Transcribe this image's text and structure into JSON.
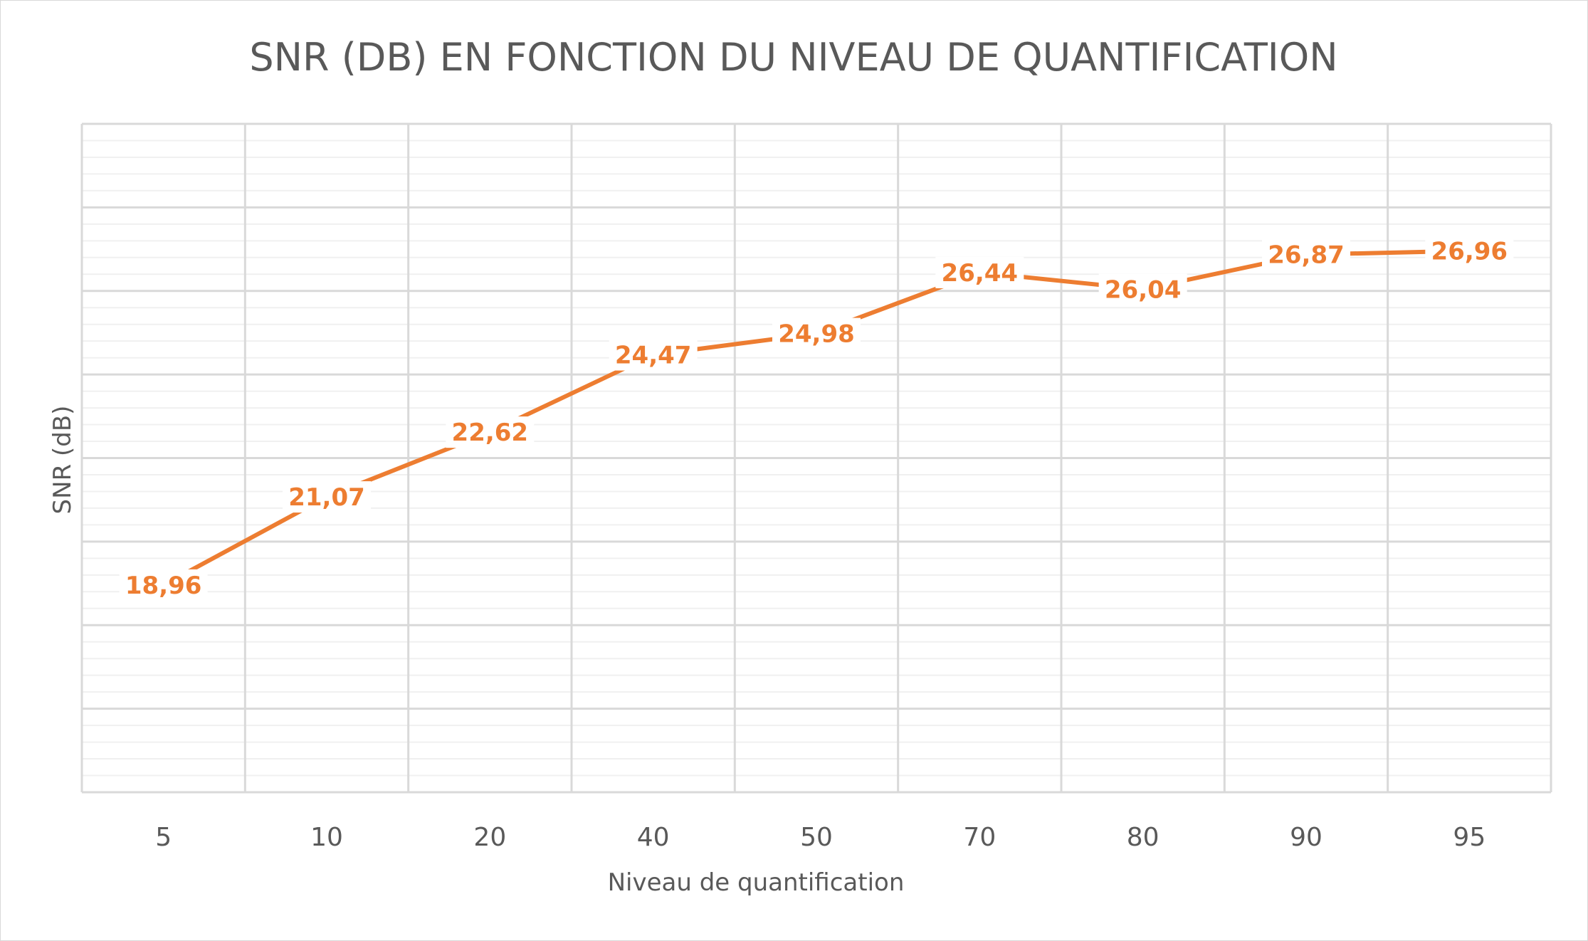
{
  "chart_data": {
    "type": "line",
    "title": "SNR (DB) EN FONCTION DU NIVEAU DE QUANTIFICATION",
    "xlabel": "Niveau de quantification",
    "ylabel": "SNR (dB)",
    "categories": [
      "5",
      "10",
      "20",
      "40",
      "50",
      "70",
      "80",
      "90",
      "95"
    ],
    "series": [
      {
        "values": [
          18.96,
          21.07,
          22.62,
          24.47,
          24.98,
          26.44,
          26.04,
          26.87,
          26.96
        ],
        "labels": [
          "18,96",
          "21,07",
          "22,62",
          "24,47",
          "24,98",
          "26,44",
          "26,04",
          "26,87",
          "26,96"
        ]
      }
    ],
    "ylim": [
      14,
      30
    ],
    "y_major_step": 2,
    "y_minor_step": 0.4,
    "y_tick_labels_visible": false,
    "grid": true,
    "legend": "none",
    "colors": {
      "series": "#ed7d31",
      "grid_major": "#d9d9d9",
      "grid_minor": "#f0f0f0",
      "text": "#595959"
    }
  }
}
